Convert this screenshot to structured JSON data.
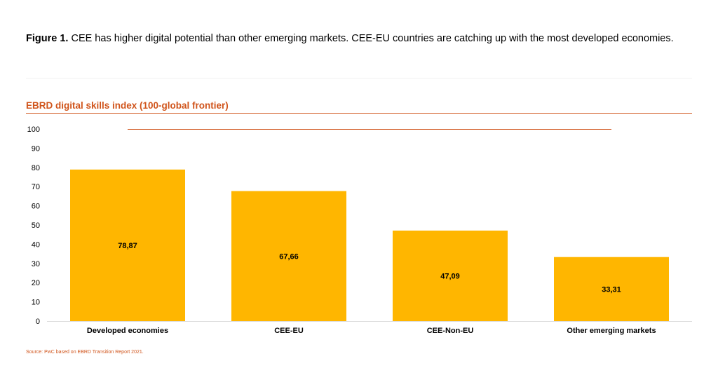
{
  "figure": {
    "label": "Figure 1.",
    "caption": "CEE has higher digital potential than other emerging markets. CEE-EU countries are catching up with the most developed economies."
  },
  "colors": {
    "accent": "#D0541B",
    "bar": "#FFB600",
    "text": "#000000",
    "axis": "#d9d9d9"
  },
  "source": "Source: PwC based on EBRD Transition Report 2021.",
  "chart_data": {
    "type": "bar",
    "title": "EBRD digital skills index (100-global frontier)",
    "xlabel": "",
    "ylabel": "",
    "categories": [
      "Developed economies",
      "CEE-EU",
      "CEE-Non-EU",
      "Other emerging markets"
    ],
    "values": [
      78.87,
      67.66,
      47.09,
      33.31
    ],
    "value_labels": [
      "78,87",
      "67,66",
      "47,09",
      "33,31"
    ],
    "reference_line": 100,
    "ylim": [
      0,
      100
    ],
    "yticks": [
      0,
      10,
      20,
      30,
      40,
      50,
      60,
      70,
      80,
      90,
      100
    ],
    "grid": false,
    "legend": "none"
  }
}
